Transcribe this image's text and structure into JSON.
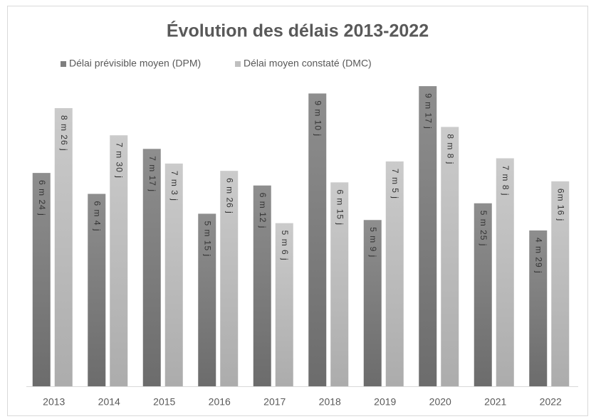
{
  "chart_data": {
    "type": "bar",
    "title": "Évolution des délais 2013-2022",
    "categories": [
      "2013",
      "2014",
      "2015",
      "2016",
      "2017",
      "2018",
      "2019",
      "2020",
      "2021",
      "2022"
    ],
    "series": [
      {
        "name": "Délai prévisible moyen (DPM)",
        "color": "#7f7f7f",
        "values": [
          6.8,
          6.133,
          7.567,
          5.5,
          6.4,
          9.333,
          5.3,
          9.567,
          5.833,
          4.967
        ],
        "value_labels": [
          "6 m 24 j",
          "6 m 4 j",
          "7 m 17 j",
          "5 m 15 j",
          "6 m 12 j",
          "9 m 10 j",
          "5 m 9 j",
          "9 m 17 j",
          "5 m 25 j",
          "4 m 29 j"
        ]
      },
      {
        "name": "Délai moyen constaté (DMC)",
        "color": "#bfbfbf",
        "values": [
          8.867,
          8.0,
          7.1,
          6.867,
          5.2,
          6.5,
          7.167,
          8.267,
          7.267,
          6.533
        ],
        "value_labels": [
          "8 m 26 j",
          "7 m 30 j",
          "7 m 3 j",
          "6 m 26 j",
          "5 m 6 j",
          "6 m 15 j",
          "7 m 5 j",
          "8 m 8 j",
          "7 m 8 j",
          "6m 16 j"
        ]
      }
    ]
  }
}
